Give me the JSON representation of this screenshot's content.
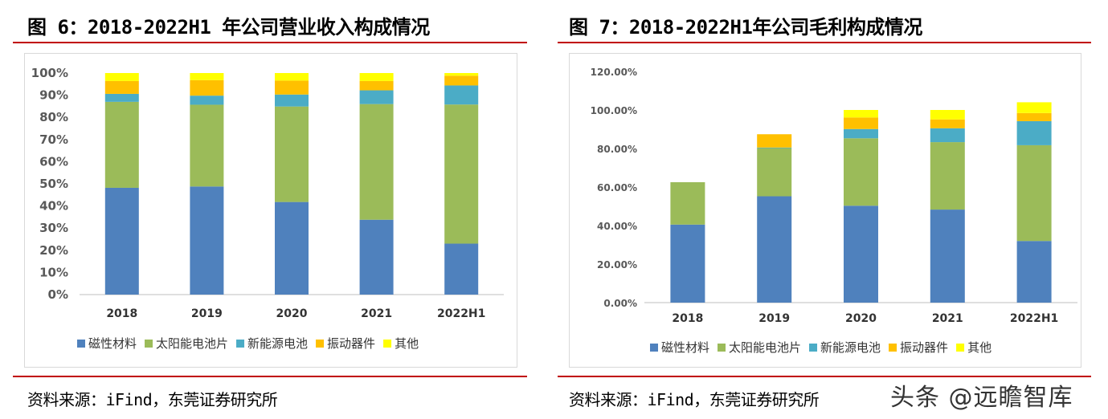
{
  "left": {
    "title": "图 6：2018-2022H1 年公司营业收入构成情况",
    "source": "资料来源：iFind，东莞证券研究所"
  },
  "right": {
    "title": "图 7：2018-2022H1年公司毛利构成情况",
    "source": "资料来源：iFind，东莞证券研究所"
  },
  "watermark": "头条 @远瞻智库",
  "chart_data": [
    {
      "type": "bar",
      "stacked": true,
      "title": "",
      "xlabel": "",
      "ylabel": "",
      "categories": [
        "2018",
        "2019",
        "2020",
        "2021",
        "2022H1"
      ],
      "ylim": [
        0,
        100
      ],
      "yticks": [
        0,
        10,
        20,
        30,
        40,
        50,
        60,
        70,
        80,
        90,
        100
      ],
      "ytick_labels": [
        "0%",
        "10%",
        "20%",
        "30%",
        "40%",
        "50%",
        "60%",
        "70%",
        "80%",
        "90%",
        "100%"
      ],
      "grid": false,
      "legend": "bottom",
      "series": [
        {
          "name": "磁性材料",
          "color": "#4f81bd",
          "values": [
            48.2,
            48.8,
            41.8,
            33.8,
            23.0
          ]
        },
        {
          "name": "太阳能电池片",
          "color": "#9bbb59",
          "values": [
            38.8,
            36.9,
            43.1,
            52.2,
            62.8
          ]
        },
        {
          "name": "新能源电池",
          "color": "#4bacc6",
          "values": [
            3.6,
            4.1,
            5.4,
            6.2,
            8.6
          ]
        },
        {
          "name": "振动器件",
          "color": "#ffc000",
          "values": [
            5.8,
            7.0,
            6.3,
            4.2,
            4.4
          ]
        },
        {
          "name": "其他",
          "color": "#ffff00",
          "values": [
            3.6,
            3.2,
            3.4,
            3.6,
            1.2
          ]
        }
      ]
    },
    {
      "type": "bar",
      "stacked": true,
      "title": "",
      "xlabel": "",
      "ylabel": "",
      "categories": [
        "2018",
        "2019",
        "2020",
        "2021",
        "2022H1"
      ],
      "ylim": [
        0,
        120
      ],
      "yticks": [
        0,
        20,
        40,
        60,
        80,
        100,
        120
      ],
      "ytick_labels": [
        "0.00%",
        "20.00%",
        "40.00%",
        "60.00%",
        "80.00%",
        "100.00%",
        "120.00%"
      ],
      "grid": false,
      "legend": "bottom",
      "series": [
        {
          "name": "磁性材料",
          "color": "#4f81bd",
          "values": [
            40.5,
            55.2,
            50.3,
            48.3,
            32.0
          ]
        },
        {
          "name": "太阳能电池片",
          "color": "#9bbb59",
          "values": [
            22.0,
            25.0,
            35.0,
            35.0,
            49.7
          ]
        },
        {
          "name": "新能源电池",
          "color": "#4bacc6",
          "values": [
            0,
            0.3,
            4.8,
            7.2,
            12.5
          ]
        },
        {
          "name": "振动器件",
          "color": "#ffc000",
          "values": [
            0,
            6.9,
            6.0,
            4.6,
            4.2
          ]
        },
        {
          "name": "其他",
          "color": "#ffff00",
          "values": [
            0,
            0,
            3.9,
            4.9,
            5.6
          ]
        }
      ]
    }
  ]
}
